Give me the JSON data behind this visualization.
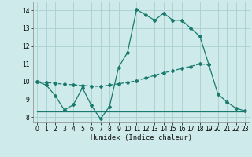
{
  "xlabel": "Humidex (Indice chaleur)",
  "bg_color": "#ceeaea",
  "line_color": "#1a7a6e",
  "grid_color": "#aacfcf",
  "xlim": [
    -0.5,
    23.5
  ],
  "ylim": [
    7.7,
    14.5
  ],
  "xticks": [
    0,
    1,
    2,
    3,
    4,
    5,
    6,
    7,
    8,
    9,
    10,
    11,
    12,
    13,
    14,
    15,
    16,
    17,
    18,
    19,
    20,
    21,
    22,
    23
  ],
  "yticks": [
    8,
    9,
    10,
    11,
    12,
    13,
    14
  ],
  "curve1_x": [
    0,
    1,
    2,
    3,
    4,
    5,
    6,
    7,
    8,
    9,
    10,
    11,
    12,
    13,
    14,
    15,
    16,
    17,
    18,
    19,
    20,
    21,
    22,
    23
  ],
  "curve1_y": [
    10.0,
    9.8,
    9.2,
    8.4,
    8.7,
    9.65,
    8.65,
    7.9,
    8.6,
    10.8,
    11.65,
    14.05,
    13.75,
    13.45,
    13.85,
    13.45,
    13.45,
    13.0,
    12.55,
    10.95,
    9.3,
    8.85,
    8.5,
    8.35
  ],
  "curve2_x": [
    0,
    1,
    2,
    3,
    4,
    5,
    6,
    7,
    8,
    9,
    10,
    11,
    12,
    13,
    14,
    15,
    16,
    17,
    18,
    19
  ],
  "curve2_y": [
    10.0,
    9.95,
    9.9,
    9.85,
    9.82,
    9.78,
    9.75,
    9.72,
    9.8,
    9.88,
    9.95,
    10.05,
    10.2,
    10.35,
    10.5,
    10.6,
    10.75,
    10.85,
    11.0,
    10.95
  ],
  "curve3_x": [
    0,
    19,
    20,
    23
  ],
  "curve3_y": [
    8.3,
    8.3,
    8.3,
    8.3
  ]
}
